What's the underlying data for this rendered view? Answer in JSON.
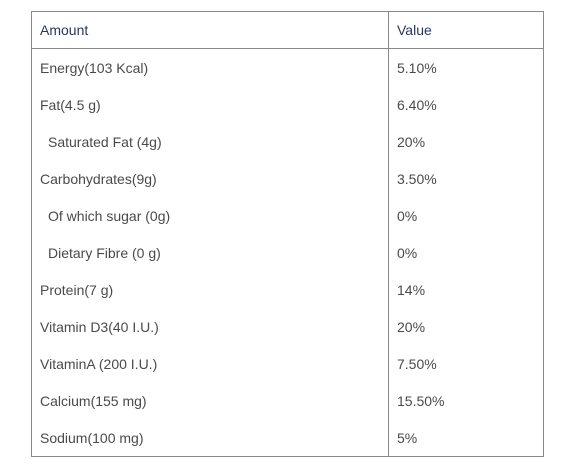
{
  "table": {
    "headers": {
      "amount": "Amount",
      "value": "Value"
    },
    "rows": [
      {
        "amount": "Energy(103 Kcal)",
        "value": "5.10%"
      },
      {
        "amount": "Fat(4.5 g)",
        "value": "6.40%"
      },
      {
        "amount": "Saturated Fat (4g)",
        "value": "20%"
      },
      {
        "amount": "Carbohydrates(9g)",
        "value": "3.50%"
      },
      {
        "amount": "Of which sugar (0g)",
        "value": "0%"
      },
      {
        "amount": "Dietary Fibre (0 g)",
        "value": "0%"
      },
      {
        "amount": "Protein(7 g)",
        "value": "14%"
      },
      {
        "amount": "Vitamin D3(40 I.U.)",
        "value": "20%"
      },
      {
        "amount": "VitaminA (200 I.U.)",
        "value": "7.50%"
      },
      {
        "amount": "Calcium(155 mg)",
        "value": "15.50%"
      },
      {
        "amount": "Sodium(100 mg)",
        "value": "5%"
      }
    ]
  }
}
